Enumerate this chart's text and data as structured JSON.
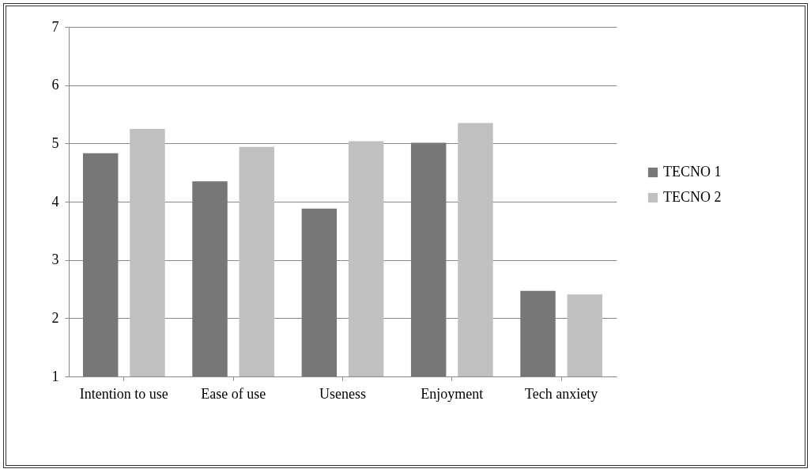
{
  "chart_data": {
    "type": "bar",
    "categories": [
      "Intention to use",
      "Ease of use",
      "Useness",
      "Enjoyment",
      "Tech anxiety"
    ],
    "series": [
      {
        "name": "TECNO 1",
        "color": "#777777",
        "values": [
          4.83,
          4.35,
          3.88,
          5.01,
          2.47
        ]
      },
      {
        "name": "TECNO 2",
        "color": "#c0c0c0",
        "values": [
          5.25,
          4.94,
          5.04,
          5.35,
          2.41
        ]
      }
    ],
    "ylim": [
      1,
      7
    ],
    "yticks": [
      1,
      2,
      3,
      4,
      5,
      6,
      7
    ],
    "grid": "y",
    "legend": "right"
  }
}
